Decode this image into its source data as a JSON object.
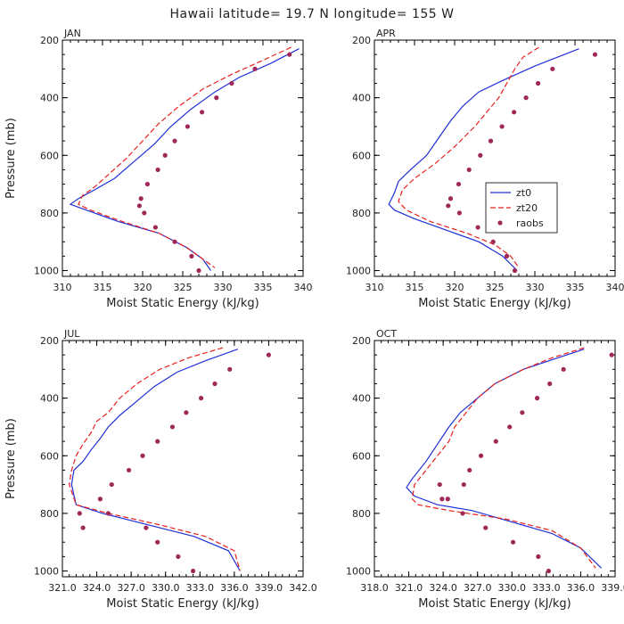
{
  "title": "Hawaii  latitude= 19.7 N longitude= 155 W",
  "colors": {
    "zt0": "#1f2fd6",
    "zt20": "#e8201c",
    "raobs": "#a02858"
  },
  "chart_data": [
    {
      "type": "line",
      "panel": "JAN",
      "xlabel": "Moist Static Energy (kJ/kg)",
      "ylabel": "Pressure (mb)",
      "xlim": [
        310,
        340
      ],
      "ylim": [
        200,
        1020
      ],
      "y_inverted": true,
      "xtick_labels": [
        "310",
        "315",
        "320",
        "325",
        "330",
        "335",
        "340"
      ],
      "xtick_values": [
        310,
        315,
        320,
        325,
        330,
        335,
        340
      ],
      "ytick_values": [
        200,
        400,
        600,
        800,
        1000
      ],
      "series": [
        {
          "name": "zt0",
          "style": "solid",
          "x": [
            339.5,
            336,
            332,
            329,
            326,
            323.5,
            321.5,
            319,
            316.5,
            314,
            312,
            311,
            313,
            317,
            322,
            325.5,
            327.5,
            328.5
          ],
          "y": [
            230,
            280,
            330,
            380,
            440,
            500,
            560,
            620,
            680,
            720,
            750,
            770,
            790,
            830,
            870,
            920,
            960,
            1000
          ]
        },
        {
          "name": "zt20",
          "style": "dashed",
          "x": [
            338.5,
            335,
            331,
            327.5,
            324.5,
            322,
            320,
            318,
            316,
            314,
            312.5,
            312,
            313.5,
            317.5,
            322,
            325.5,
            327.5,
            329
          ],
          "y": [
            225,
            270,
            320,
            370,
            430,
            490,
            550,
            610,
            660,
            710,
            740,
            770,
            790,
            830,
            870,
            920,
            960,
            990
          ]
        },
        {
          "name": "raobs",
          "style": "dots",
          "x": [
            338.3,
            334,
            331.1,
            329.2,
            327.4,
            325.6,
            324,
            322.8,
            321.9,
            320.6,
            319.8,
            319.6,
            320.2,
            321.6,
            324,
            326.1,
            327
          ],
          "y": [
            250,
            300,
            350,
            400,
            450,
            500,
            550,
            600,
            650,
            700,
            750,
            775,
            800,
            850,
            900,
            950,
            1000
          ]
        }
      ]
    },
    {
      "type": "line",
      "panel": "APR",
      "xlabel": "Moist Static Energy (kJ/kg)",
      "ylabel": "Pressure (mb)",
      "xlim": [
        310,
        340
      ],
      "ylim": [
        200,
        1020
      ],
      "y_inverted": true,
      "xtick_labels": [
        "310",
        "315",
        "320",
        "325",
        "330",
        "335",
        "340"
      ],
      "xtick_values": [
        310,
        315,
        320,
        325,
        330,
        335,
        340
      ],
      "ytick_values": [
        200,
        400,
        600,
        800,
        1000
      ],
      "legend": {
        "entries": [
          "zt0",
          "zt20",
          "raobs"
        ],
        "placement": "center-right"
      },
      "series": [
        {
          "name": "zt0",
          "style": "solid",
          "x": [
            335.5,
            330,
            326,
            323,
            321,
            319.5,
            318,
            316.5,
            314.5,
            313,
            312.5,
            311.8,
            312.5,
            315,
            319,
            323,
            326,
            327.8
          ],
          "y": [
            230,
            290,
            340,
            380,
            430,
            480,
            540,
            600,
            650,
            690,
            730,
            770,
            790,
            820,
            860,
            900,
            950,
            1000
          ]
        },
        {
          "name": "zt20",
          "style": "dashed",
          "x": [
            330.5,
            328.5,
            327.5,
            326.5,
            325.5,
            324,
            322.5,
            320,
            317.5,
            315,
            313.5,
            313,
            314,
            317,
            321.5,
            325,
            327,
            328
          ],
          "y": [
            225,
            260,
            300,
            350,
            400,
            450,
            500,
            570,
            630,
            680,
            720,
            760,
            790,
            830,
            870,
            910,
            950,
            990
          ]
        },
        {
          "name": "raobs",
          "style": "dots",
          "x": [
            337.5,
            332.2,
            330.4,
            328.9,
            327.4,
            325.9,
            324.5,
            323.2,
            321.8,
            320.5,
            319.5,
            319.2,
            320.6,
            322.9,
            324.8,
            326.5,
            327.5
          ],
          "y": [
            250,
            300,
            350,
            400,
            450,
            500,
            550,
            600,
            650,
            700,
            750,
            775,
            800,
            850,
            900,
            950,
            1000
          ]
        }
      ]
    },
    {
      "type": "line",
      "panel": "JUL",
      "xlabel": "Moist Static Energy (kJ/kg)",
      "ylabel": "Pressure (mb)",
      "xlim": [
        321.0,
        342.0
      ],
      "ylim": [
        200,
        1020
      ],
      "y_inverted": true,
      "xtick_labels": [
        "321.0",
        "324.0",
        "327.0",
        "330.0",
        "333.0",
        "336.0",
        "339.0",
        "342.0"
      ],
      "xtick_values": [
        321,
        324,
        327,
        330,
        333,
        336,
        339,
        342
      ],
      "ytick_values": [
        200,
        400,
        600,
        800,
        1000
      ],
      "series": [
        {
          "name": "zt0",
          "style": "solid",
          "x": [
            336.3,
            333.5,
            331,
            329,
            327.5,
            326,
            325,
            324.3,
            323.5,
            322.8,
            322,
            321.8,
            322.2,
            324.5,
            328.5,
            332.5,
            335.5,
            336.5
          ],
          "y": [
            230,
            270,
            310,
            360,
            410,
            460,
            500,
            540,
            580,
            620,
            650,
            700,
            770,
            800,
            840,
            880,
            930,
            1000
          ]
        },
        {
          "name": "zt20",
          "style": "dashed",
          "x": [
            335,
            332,
            329.5,
            327.5,
            326,
            325,
            324,
            323.5,
            322.8,
            322.2,
            321.8,
            321.6,
            322.2,
            325,
            329.5,
            333.5,
            336,
            336.5
          ],
          "y": [
            225,
            260,
            300,
            350,
            400,
            450,
            480,
            520,
            560,
            600,
            650,
            700,
            770,
            800,
            840,
            880,
            930,
            1000
          ]
        },
        {
          "name": "raobs",
          "style": "dots",
          "x": [
            339,
            335.6,
            334.3,
            333.1,
            331.8,
            330.6,
            329.3,
            328,
            326.8,
            325.3,
            324.3,
            322.5,
            322.8,
            325,
            328.3,
            329.3,
            331.1,
            332.4
          ],
          "y": [
            250,
            300,
            350,
            400,
            450,
            500,
            550,
            600,
            650,
            700,
            750,
            800,
            850,
            800,
            850,
            900,
            950,
            1000
          ]
        }
      ]
    },
    {
      "type": "line",
      "panel": "OCT",
      "xlabel": "Moist Static Energy (kJ/kg)",
      "ylabel": "Pressure (mb)",
      "xlim": [
        318.0,
        339.0
      ],
      "ylim": [
        200,
        1020
      ],
      "y_inverted": true,
      "xtick_labels": [
        "318.0",
        "321.0",
        "324.0",
        "327.0",
        "330.0",
        "333.0",
        "336.0",
        "339.0"
      ],
      "xtick_values": [
        318,
        321,
        324,
        327,
        330,
        333,
        336,
        339
      ],
      "ytick_values": [
        200,
        400,
        600,
        800,
        1000
      ],
      "series": [
        {
          "name": "zt0",
          "style": "solid",
          "x": [
            336.3,
            334,
            331,
            328.5,
            327,
            325.5,
            324.5,
            323.5,
            322.5,
            321.3,
            320.8,
            321.5,
            323.5,
            326.5,
            330,
            333.5,
            336,
            337.8
          ],
          "y": [
            230,
            260,
            300,
            350,
            400,
            450,
            500,
            560,
            620,
            680,
            710,
            740,
            770,
            790,
            830,
            870,
            920,
            990
          ]
        },
        {
          "name": "zt20",
          "style": "dashed",
          "x": [
            336.3,
            333.5,
            331,
            328.5,
            327,
            326,
            325,
            324.5,
            323.5,
            322.5,
            321.5,
            321.3,
            321.8,
            324.5,
            329.5,
            333.5,
            336,
            337.3
          ],
          "y": [
            225,
            260,
            300,
            350,
            400,
            450,
            500,
            550,
            600,
            650,
            700,
            750,
            770,
            790,
            820,
            860,
            920,
            990
          ]
        },
        {
          "name": "raobs",
          "style": "dots",
          "x": [
            338.7,
            334.5,
            333.3,
            332.2,
            330.9,
            329.8,
            328.6,
            327.3,
            326.3,
            325.8,
            324.4,
            323.7,
            323.9,
            325.7,
            327.7,
            330.1,
            332.3,
            333.2
          ],
          "y": [
            250,
            300,
            350,
            400,
            450,
            500,
            550,
            600,
            650,
            700,
            750,
            700,
            750,
            800,
            850,
            900,
            950,
            1000
          ]
        }
      ]
    }
  ]
}
